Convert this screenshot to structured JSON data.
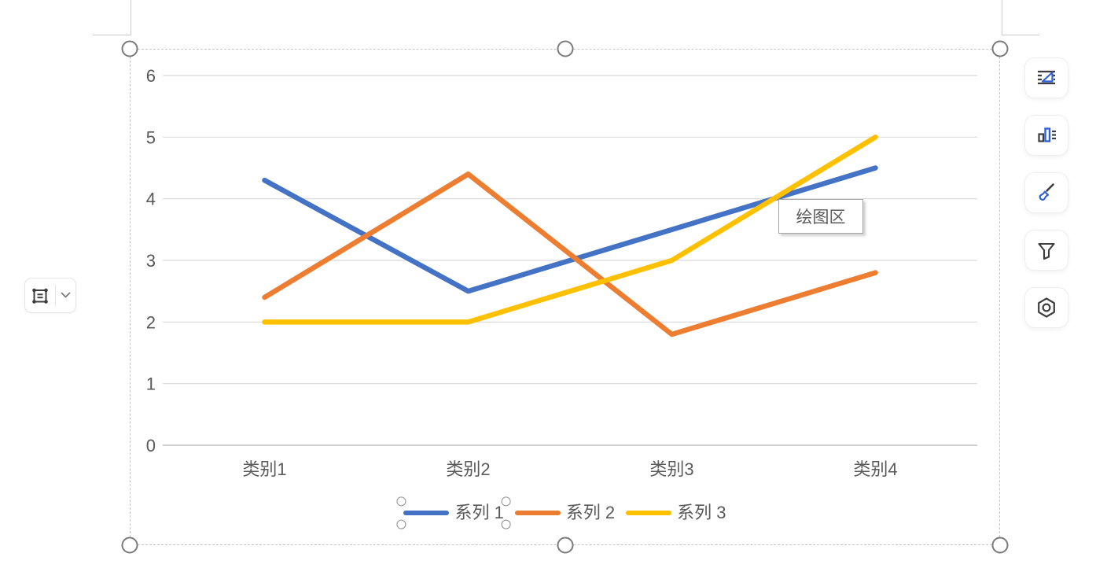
{
  "tooltip": {
    "text": "绘图区"
  },
  "chart_data": {
    "type": "line",
    "title": "",
    "xlabel": "",
    "ylabel": "",
    "categories": [
      "类别1",
      "类别2",
      "类别3",
      "类别4"
    ],
    "series": [
      {
        "name": "系列 1",
        "color": "#4472C4",
        "values": [
          4.3,
          2.5,
          3.5,
          4.5
        ]
      },
      {
        "name": "系列 2",
        "color": "#ED7D31",
        "values": [
          2.4,
          4.4,
          1.8,
          2.8
        ]
      },
      {
        "name": "系列 3",
        "color": "#FFC000",
        "values": [
          2,
          2,
          3,
          5
        ]
      }
    ],
    "ylim": [
      0,
      6
    ],
    "yticks": [
      0,
      1,
      2,
      3,
      4,
      5,
      6
    ],
    "grid": true,
    "legend_position": "bottom",
    "axis_text_color": "#595959",
    "gridline_color": "#D9D9D9",
    "axis_line_color": "#BFBFBF"
  },
  "selection": {
    "chart_selected": true,
    "selected_legend_entry": "系列 1"
  },
  "left_toolbar": {
    "icons": [
      "select-object-icon",
      "chevron-down-icon"
    ]
  },
  "right_toolbar": {
    "buttons": [
      {
        "name": "layout-options",
        "icon": "layout-options-icon"
      },
      {
        "name": "chart-elements",
        "icon": "chart-elements-icon"
      },
      {
        "name": "chart-styles",
        "icon": "chart-styles-icon"
      },
      {
        "name": "chart-filters",
        "icon": "chart-filters-icon"
      },
      {
        "name": "chart-settings",
        "icon": "hexagon-settings-icon"
      }
    ]
  }
}
